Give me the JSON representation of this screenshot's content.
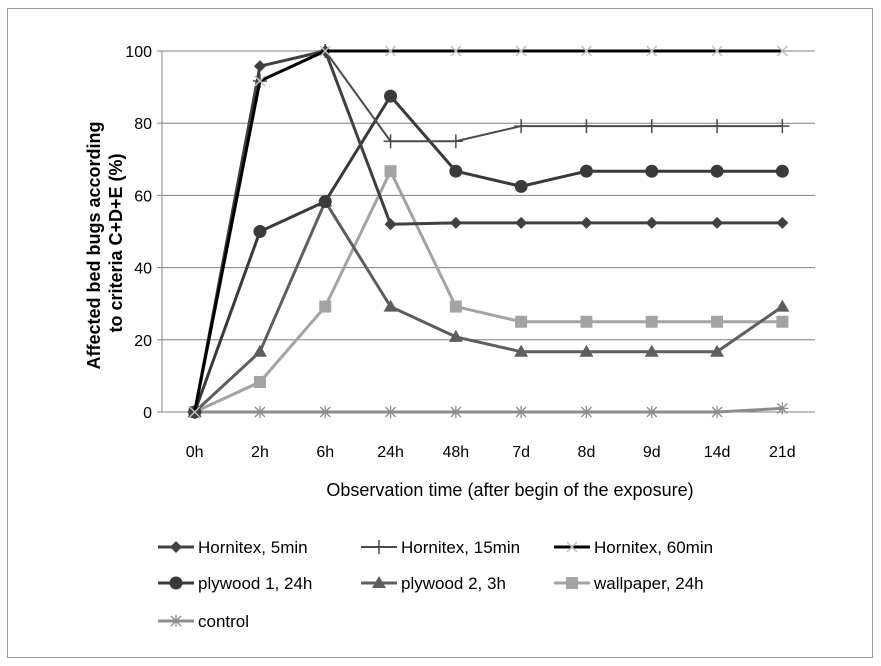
{
  "chart_data": {
    "type": "line",
    "categories": [
      "0h",
      "2h",
      "6h",
      "24h",
      "48h",
      "7d",
      "8d",
      "9d",
      "14d",
      "21d"
    ],
    "xlabel": "Observation time (after begin of the exposure)",
    "ylabel_lines": [
      "Affected bed bugs according",
      "to criteria C+D+E  (%)"
    ],
    "ylim": [
      0,
      100
    ],
    "yticks": [
      0,
      20,
      40,
      60,
      80,
      100
    ],
    "grid": true,
    "legend_position": "bottom",
    "series": [
      {
        "name": "Hornitex, 5min",
        "marker": "diamond",
        "color": "#404040",
        "width": 3,
        "values": [
          0,
          95.8,
          100,
          52,
          52.4,
          52.4,
          52.4,
          52.4,
          52.4,
          52.4
        ]
      },
      {
        "name": "Hornitex, 15min",
        "marker": "plus",
        "color": "#4a4a4a",
        "width": 2,
        "values": [
          0,
          91.7,
          100,
          75,
          75,
          79.2,
          79.2,
          79.2,
          79.2,
          79.2
        ]
      },
      {
        "name": "Hornitex, 60min",
        "marker": "x",
        "color": "#000000",
        "width": 3,
        "values": [
          0,
          91.7,
          100,
          100,
          100,
          100,
          100,
          100,
          100,
          100
        ]
      },
      {
        "name": "plywood 1, 24h",
        "marker": "circle",
        "color": "#3a3a3a",
        "width": 3,
        "values": [
          0,
          50,
          58.3,
          87.5,
          66.7,
          62.5,
          66.7,
          66.7,
          66.7,
          66.7
        ]
      },
      {
        "name": "plywood 2, 3h",
        "marker": "triangle",
        "color": "#5e5e5e",
        "width": 3,
        "values": [
          0,
          16.7,
          58.3,
          29.2,
          20.8,
          16.7,
          16.7,
          16.7,
          16.7,
          29.2
        ]
      },
      {
        "name": "wallpaper, 24h",
        "marker": "square",
        "color": "#a3a3a3",
        "width": 3,
        "values": [
          0,
          8.3,
          29.2,
          66.7,
          29.2,
          25,
          25,
          25,
          25,
          25
        ]
      },
      {
        "name": "control",
        "marker": "star",
        "color": "#8c8c8c",
        "width": 3,
        "values": [
          0,
          0,
          0,
          0,
          0,
          0,
          0,
          0,
          0,
          1
        ]
      }
    ]
  },
  "colors": {
    "grid": "#808080",
    "axis": "#808080",
    "x_marker_overlay": "#c0c0c0"
  }
}
